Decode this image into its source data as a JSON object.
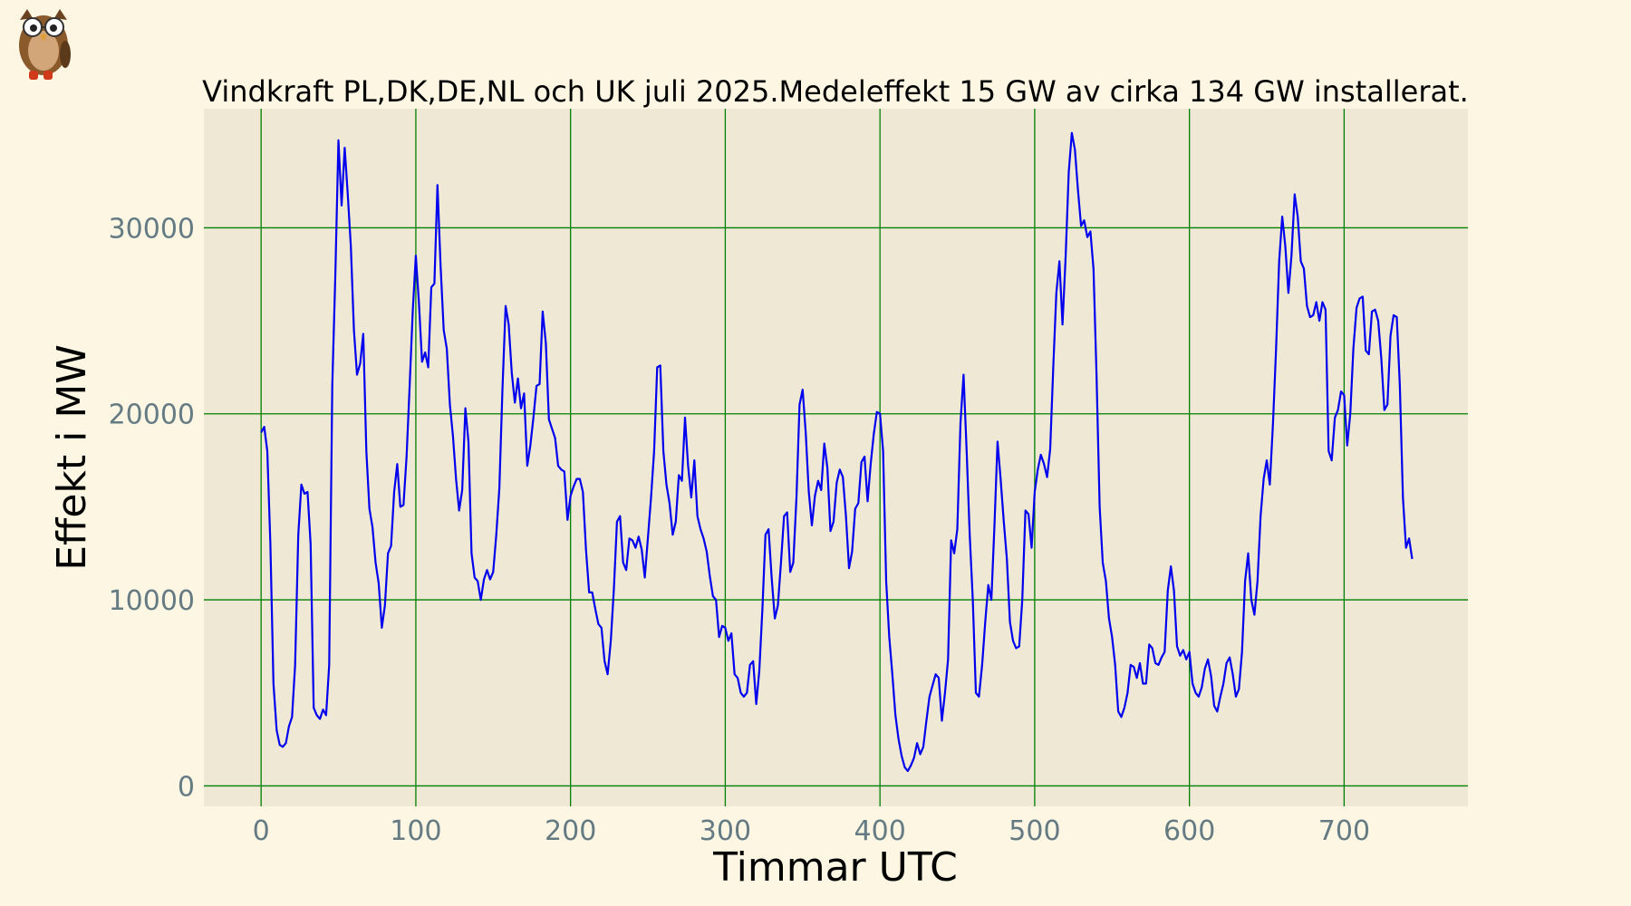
{
  "chart_data": {
    "type": "line",
    "title": "Vindkraft PL,DK,DE,NL och UK juli 2025.Medeleffekt 15 GW av cirka 134 GW installerat.",
    "xlabel": "Timmar UTC",
    "ylabel": "Effekt i MW",
    "xlim": [
      -37,
      780
    ],
    "ylim": [
      -1100,
      36400
    ],
    "xticks": [
      0,
      100,
      200,
      300,
      400,
      500,
      600,
      700
    ],
    "yticks": [
      0,
      10000,
      20000,
      30000
    ],
    "grid": true,
    "colors": {
      "figure_background": "#fdf6e3",
      "plot_background": "#eee8d5",
      "line": "#0000ee",
      "grid": "#008000",
      "tick_text": "#657b83"
    },
    "series": [
      {
        "x": [
          0,
          2,
          4,
          6,
          8,
          10,
          12,
          14,
          16,
          18,
          20,
          22,
          24,
          26,
          28,
          30,
          32,
          34,
          36,
          38,
          40,
          42,
          44,
          46,
          48,
          50,
          52,
          54,
          56,
          58,
          60,
          62,
          64,
          66,
          68,
          70,
          72,
          74,
          76,
          78,
          80,
          82,
          84,
          86,
          88,
          90,
          92,
          94,
          96,
          98,
          100,
          102,
          104,
          106,
          108,
          110,
          112,
          114,
          116,
          118,
          120,
          122,
          124,
          126,
          128,
          130,
          132,
          134,
          136,
          138,
          140,
          142,
          144,
          146,
          148,
          150,
          152,
          154,
          156,
          158,
          160,
          162,
          164,
          166,
          168,
          170,
          172,
          174,
          176,
          178,
          180,
          182,
          184,
          186,
          188,
          190,
          192,
          194,
          196,
          198,
          200,
          202,
          204,
          206,
          208,
          210,
          212,
          214,
          216,
          218,
          220,
          222,
          224,
          226,
          228,
          230,
          232,
          234,
          236,
          238,
          240,
          242,
          244,
          246,
          248,
          250,
          252,
          254,
          256,
          258,
          260,
          262,
          264,
          266,
          268,
          270,
          272,
          274,
          276,
          278,
          280,
          282,
          284,
          286,
          288,
          290,
          292,
          294,
          296,
          298,
          300,
          302,
          304,
          306,
          308,
          310,
          312,
          314,
          316,
          318,
          320,
          322,
          324,
          326,
          328,
          330,
          332,
          334,
          336,
          338,
          340,
          342,
          344,
          346,
          348,
          350,
          352,
          354,
          356,
          358,
          360,
          362,
          364,
          366,
          368,
          370,
          372,
          374,
          376,
          378,
          380,
          382,
          384,
          386,
          388,
          390,
          392,
          394,
          396,
          398,
          400,
          402,
          404,
          406,
          408,
          410,
          412,
          414,
          416,
          418,
          420,
          422,
          424,
          426,
          428,
          430,
          432,
          434,
          436,
          438,
          440,
          442,
          444,
          446,
          448,
          450,
          452,
          454,
          456,
          458,
          460,
          462,
          464,
          466,
          468,
          470,
          472,
          474,
          476,
          478,
          480,
          482,
          484,
          486,
          488,
          490,
          492,
          494,
          496,
          498,
          500,
          502,
          504,
          506,
          508,
          510,
          512,
          514,
          516,
          518,
          520,
          522,
          524,
          526,
          528,
          530,
          532,
          534,
          536,
          538,
          540,
          542,
          544,
          546,
          548,
          550,
          552,
          554,
          556,
          558,
          560,
          562,
          564,
          566,
          568,
          570,
          572,
          574,
          576,
          578,
          580,
          582,
          584,
          586,
          588,
          590,
          592,
          594,
          596,
          598,
          600,
          602,
          604,
          606,
          608,
          610,
          612,
          614,
          616,
          618,
          620,
          622,
          624,
          626,
          628,
          630,
          632,
          634,
          636,
          638,
          640,
          642,
          644,
          646,
          648,
          650,
          652,
          654,
          656,
          658,
          660,
          662,
          664,
          666,
          668,
          670,
          672,
          674,
          676,
          678,
          680,
          682,
          684,
          686,
          688,
          690,
          692,
          694,
          696,
          698,
          700,
          702,
          704,
          706,
          708,
          710,
          712,
          714,
          716,
          718,
          720,
          722,
          724,
          726,
          728,
          730,
          732,
          734,
          736,
          738,
          740,
          742,
          744
        ],
        "y": [
          19000,
          19300,
          18000,
          13000,
          5500,
          3000,
          2200,
          2100,
          2300,
          3200,
          3700,
          6500,
          13500,
          16200,
          15700,
          15800,
          13000,
          4200,
          3800,
          3600,
          4100,
          3800,
          6500,
          21500,
          27500,
          34700,
          31200,
          34300,
          31800,
          29000,
          24500,
          22100,
          22700,
          24300,
          18000,
          14900,
          13900,
          12000,
          10900,
          8500,
          9700,
          12500,
          12900,
          15800,
          17300,
          15000,
          15100,
          17700,
          21500,
          25500,
          28500,
          26000,
          22800,
          23300,
          22500,
          26800,
          27000,
          32300,
          28000,
          24500,
          23500,
          20500,
          18800,
          16500,
          14800,
          15900,
          20300,
          18500,
          12500,
          11200,
          11000,
          10000,
          11100,
          11600,
          11100,
          11500,
          13500,
          16000,
          21300,
          25800,
          24800,
          22200,
          20600,
          21900,
          20300,
          21100,
          17200,
          18300,
          19800,
          21500,
          21600,
          25500,
          23800,
          19700,
          19200,
          18700,
          17200,
          17000,
          16900,
          14300,
          15600,
          16100,
          16500,
          16500,
          15800,
          12700,
          10400,
          10400,
          9500,
          8700,
          8500,
          6700,
          6000,
          7800,
          10600,
          14200,
          14500,
          12000,
          11600,
          13300,
          13200,
          12800,
          13400,
          12700,
          11200,
          13300,
          15500,
          18000,
          22500,
          22600,
          18000,
          16200,
          15200,
          13500,
          14200,
          16700,
          16400,
          19800,
          17200,
          15500,
          17500,
          14500,
          13800,
          13300,
          12600,
          11300,
          10200,
          10000,
          8000,
          8600,
          8500,
          7800,
          8200,
          6000,
          5800,
          5000,
          4800,
          5000,
          6500,
          6700,
          4400,
          6200,
          9500,
          13500,
          13800,
          11200,
          9000,
          9700,
          12000,
          14500,
          14700,
          11500,
          12000,
          15500,
          20500,
          21300,
          19000,
          15800,
          14000,
          15600,
          16400,
          15900,
          18400,
          17100,
          13700,
          14200,
          16300,
          17000,
          16600,
          14500,
          11700,
          12600,
          14900,
          15200,
          17400,
          17700,
          15300,
          17300,
          18900,
          20100,
          20000,
          18000,
          11000,
          8000,
          6000,
          3800,
          2500,
          1600,
          1000,
          800,
          1100,
          1500,
          2300,
          1700,
          2100,
          3500,
          4800,
          5400,
          6000,
          5800,
          3500,
          5000,
          6800,
          13200,
          12500,
          13800,
          19500,
          22100,
          18000,
          13500,
          10000,
          5000,
          4800,
          6500,
          8800,
          10800,
          10000,
          14000,
          18500,
          16500,
          14200,
          12200,
          8800,
          7800,
          7400,
          7500,
          10000,
          14800,
          14600,
          12800,
          15800,
          17000,
          17800,
          17300,
          16600,
          18100,
          22500,
          26500,
          28200,
          24800,
          28500,
          33000,
          35100,
          34200,
          32000,
          30100,
          30400,
          29500,
          29800,
          27800,
          22000,
          15000,
          12000,
          11000,
          9000,
          8000,
          6500,
          4000,
          3700,
          4200,
          5000,
          6500,
          6400,
          5800,
          6600,
          5500,
          5500,
          7600,
          7400,
          6600,
          6500,
          6900,
          7200,
          10500,
          11800,
          10500,
          7500,
          7000,
          7300,
          6800,
          7200,
          5500,
          5000,
          4800,
          5300,
          6300,
          6800,
          5900,
          4300,
          4000,
          4800,
          5500,
          6600,
          6900,
          6000,
          4800,
          5200,
          7200,
          11000,
          12500,
          10000,
          9200,
          11000,
          14500,
          16500,
          17500,
          16200,
          19500,
          23500,
          28200,
          30600,
          29000,
          26500,
          28500,
          31800,
          30600,
          28200,
          27800,
          25800,
          25200,
          25300,
          26000,
          25000,
          26000,
          25600,
          18000,
          17500,
          19800,
          20200,
          21200,
          21000,
          18300,
          20000,
          23500,
          25700,
          26200,
          26300,
          23400,
          23200,
          25500,
          25600,
          25000,
          23000,
          20200,
          20500,
          24200,
          25300,
          25200,
          21500,
          15500,
          12800,
          13300,
          12200
        ]
      }
    ]
  }
}
